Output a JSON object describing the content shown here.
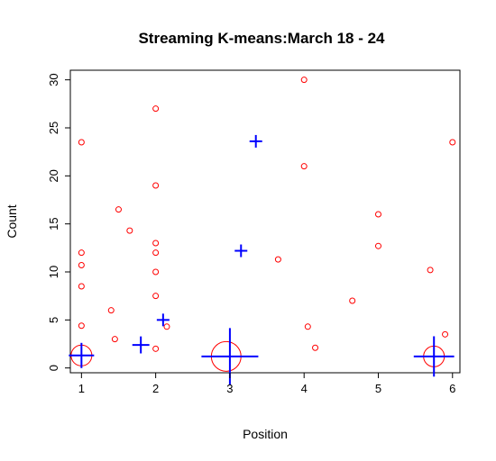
{
  "chart_data": {
    "type": "scatter",
    "title": "Streaming K-means:March 18 - 24",
    "xlabel": "Position",
    "ylabel": "Count",
    "xlim": [
      0.85,
      6.1
    ],
    "ylim": [
      -0.5,
      31
    ],
    "x_ticks": [
      "1",
      "2",
      "3",
      "4",
      "5",
      "6"
    ],
    "y_ticks": [
      "0",
      "5",
      "10",
      "15",
      "20",
      "25",
      "30"
    ],
    "grid": false,
    "legend": "none",
    "colors": {
      "points": "#ff0000",
      "centers": "#0000ff"
    },
    "points": [
      {
        "x": 1.0,
        "y": 23.5
      },
      {
        "x": 1.0,
        "y": 12.0
      },
      {
        "x": 1.0,
        "y": 10.7
      },
      {
        "x": 1.0,
        "y": 8.5
      },
      {
        "x": 1.0,
        "y": 4.4
      },
      {
        "x": 1.4,
        "y": 6.0
      },
      {
        "x": 1.45,
        "y": 3.0
      },
      {
        "x": 1.5,
        "y": 16.5
      },
      {
        "x": 1.65,
        "y": 14.3
      },
      {
        "x": 2.0,
        "y": 27.0
      },
      {
        "x": 2.0,
        "y": 19.0
      },
      {
        "x": 2.0,
        "y": 13.0
      },
      {
        "x": 2.0,
        "y": 12.0
      },
      {
        "x": 2.0,
        "y": 10.0
      },
      {
        "x": 2.0,
        "y": 7.5
      },
      {
        "x": 2.0,
        "y": 2.0
      },
      {
        "x": 2.15,
        "y": 4.3
      },
      {
        "x": 3.65,
        "y": 11.3
      },
      {
        "x": 4.0,
        "y": 30.0
      },
      {
        "x": 4.0,
        "y": 21.0
      },
      {
        "x": 4.05,
        "y": 4.3
      },
      {
        "x": 4.15,
        "y": 2.1
      },
      {
        "x": 4.65,
        "y": 7.0
      },
      {
        "x": 5.0,
        "y": 16.0
      },
      {
        "x": 5.0,
        "y": 12.7
      },
      {
        "x": 5.7,
        "y": 10.2
      },
      {
        "x": 5.9,
        "y": 3.5
      },
      {
        "x": 6.0,
        "y": 23.5
      }
    ],
    "cluster_circles": [
      {
        "x": 1.0,
        "y": 1.3,
        "r": 0.14
      },
      {
        "x": 2.95,
        "y": 1.2,
        "r": 0.2
      },
      {
        "x": 5.75,
        "y": 1.2,
        "r": 0.14
      }
    ],
    "centers": [
      {
        "x": 3.35,
        "y": 23.6,
        "size": 1
      },
      {
        "x": 3.15,
        "y": 12.2,
        "size": 1
      },
      {
        "x": 2.1,
        "y": 5.0,
        "size": 1
      },
      {
        "x": 1.8,
        "y": 2.4,
        "size": 1.35
      },
      {
        "x": 1.0,
        "y": 1.3,
        "size": 2
      },
      {
        "x": 3.0,
        "y": 1.2,
        "size": 4.5
      },
      {
        "x": 5.75,
        "y": 1.2,
        "size": 3.2
      }
    ]
  }
}
